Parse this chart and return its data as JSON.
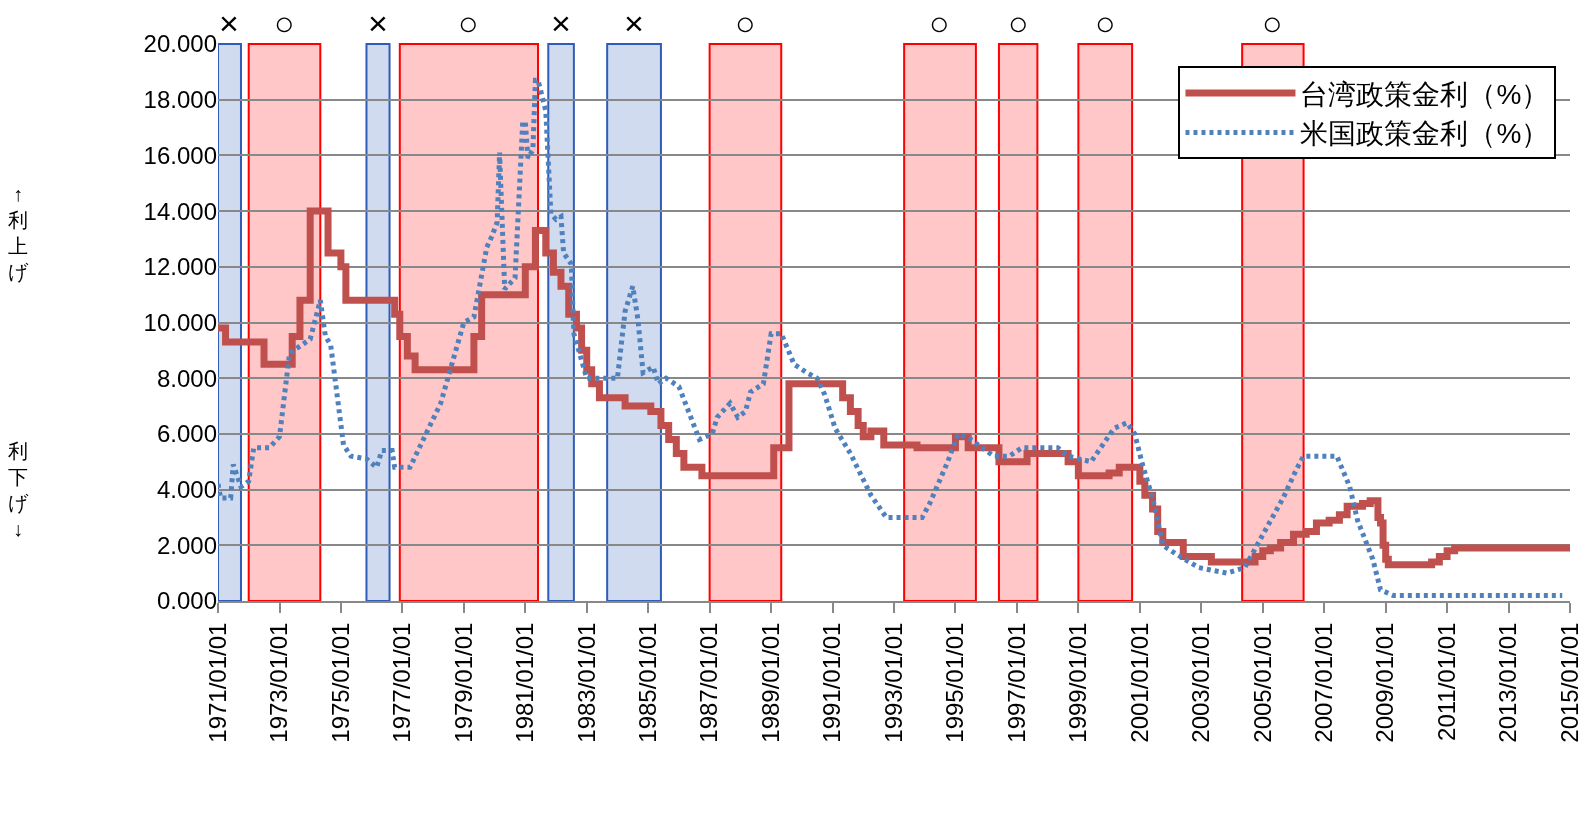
{
  "chart_data": {
    "type": "line",
    "annotations": [
      "↑利上げ",
      "利下げ↓"
    ],
    "series": [
      {
        "name": "台湾政策金利（%）",
        "type": "step",
        "color": "#c0504d",
        "line_style": "solid",
        "x": [
          "1971-01",
          "1971-04",
          "1972-07",
          "1973-06",
          "1973-09",
          "1974-01",
          "1974-08",
          "1975-01",
          "1975-03",
          "1976-10",
          "1976-12",
          "1977-03",
          "1977-06",
          "1979-05",
          "1979-08",
          "1981-01",
          "1981-05",
          "1981-09",
          "1981-12",
          "1982-03",
          "1982-06",
          "1982-09",
          "1982-11",
          "1983-01",
          "1983-03",
          "1983-06",
          "1984-04",
          "1985-02",
          "1985-06",
          "1985-09",
          "1985-12",
          "1986-03",
          "1986-10",
          "1989-02",
          "1989-08",
          "1991-05",
          "1991-08",
          "1991-11",
          "1992-01",
          "1992-04",
          "1992-09",
          "1993-10",
          "1995-01",
          "1995-06",
          "1996-06",
          "1997-05",
          "1998-09",
          "1999-01",
          "2000-01",
          "2000-05",
          "2001-01",
          "2001-03",
          "2001-06",
          "2001-08",
          "2001-10",
          "2002-06",
          "2003-05",
          "2004-10",
          "2005-01",
          "2005-04",
          "2005-08",
          "2006-01",
          "2006-06",
          "2006-10",
          "2007-03",
          "2007-07",
          "2007-10",
          "2008-04",
          "2008-07",
          "2008-10",
          "2008-11",
          "2008-12",
          "2009-01",
          "2009-02",
          "2010-07",
          "2010-10",
          "2011-01",
          "2011-04",
          "2015-01"
        ],
        "values": [
          9.8,
          9.3,
          8.5,
          9.5,
          10.8,
          14,
          12.5,
          12,
          10.8,
          10.3,
          9.5,
          8.8,
          8.3,
          9.5,
          11,
          12,
          13.3,
          12.5,
          11.8,
          11.3,
          10.3,
          9.8,
          9,
          8.3,
          7.8,
          7.3,
          7,
          6.8,
          6.3,
          5.8,
          5.3,
          4.8,
          4.5,
          5.5,
          7.8,
          7.3,
          6.8,
          6.3,
          5.9,
          6.1,
          5.6,
          5.5,
          5.9,
          5.5,
          5,
          5.3,
          5,
          4.5,
          4.6,
          4.8,
          4.3,
          3.8,
          3.3,
          2.5,
          2.1,
          1.6,
          1.4,
          1.6,
          1.8,
          1.9,
          2.1,
          2.4,
          2.5,
          2.8,
          2.9,
          3.1,
          3.4,
          3.5,
          3.6,
          3,
          2.8,
          2,
          1.5,
          1.3,
          1.4,
          1.6,
          1.8,
          1.9,
          1.9
        ]
      },
      {
        "name": "米国政策金利（%）",
        "color": "#4f81bd",
        "line_style": "dotted",
        "x": [
          "1971-01",
          "1971-02",
          "1971-06",
          "1971-07",
          "1971-10",
          "1972-01",
          "1972-03",
          "1972-09",
          "1973-01",
          "1973-05",
          "1974-01",
          "1974-05",
          "1974-07",
          "1974-09",
          "1975-02",
          "1975-05",
          "1975-11",
          "1976-03",
          "1976-05",
          "1976-09",
          "1976-10",
          "1977-04",
          "1978-04",
          "1979-01",
          "1979-05",
          "1979-10",
          "1979-12",
          "1980-02",
          "1980-03",
          "1980-05",
          "1980-09",
          "1980-12",
          "1981-01",
          "1981-02",
          "1981-04",
          "1981-05",
          "1981-06",
          "1981-09",
          "1981-11",
          "1982-01",
          "1982-03",
          "1982-04",
          "1982-07",
          "1982-08",
          "1983-01",
          "1984-01",
          "1984-04",
          "1984-07",
          "1984-09",
          "1984-11",
          "1985-03",
          "1985-05",
          "1985-08",
          "1986-01",
          "1986-09",
          "1987-02",
          "1987-04",
          "1987-09",
          "1987-12",
          "1988-03",
          "1988-05",
          "1988-10",
          "1989-01",
          "1989-05",
          "1989-10",
          "1990-03",
          "1990-07",
          "1990-10",
          "1991-02",
          "1991-08",
          "1992-04",
          "1992-10",
          "1993-12",
          "1994-03",
          "1994-10",
          "1995-02",
          "1995-07",
          "1996-04",
          "1996-10",
          "1997-03",
          "1998-05",
          "1998-09",
          "1999-06",
          "2000-03",
          "2000-08",
          "2000-11",
          "2001-02",
          "2001-06",
          "2001-10",
          "2002-03",
          "2002-12",
          "2003-11",
          "2004-06",
          "2005-03",
          "2005-09",
          "2006-02",
          "2006-05",
          "2007-06",
          "2007-11",
          "2008-02",
          "2008-08",
          "2008-11",
          "2009-04",
          "2014-10"
        ],
        "values": [
          4.2,
          3.7,
          3.7,
          4.9,
          4.1,
          4.3,
          5.5,
          5.5,
          5.9,
          8.9,
          9.4,
          10.8,
          9.5,
          9.2,
          5.6,
          5.2,
          5.1,
          4.8,
          5.4,
          5.4,
          4.8,
          4.8,
          7.1,
          10,
          10.2,
          12.7,
          13.1,
          13.6,
          16.1,
          11.2,
          11.6,
          17.2,
          17.2,
          15.9,
          16.2,
          18.7,
          18.7,
          17.6,
          13.9,
          13.7,
          13.8,
          12.5,
          12.1,
          9.6,
          8,
          8,
          10.4,
          11.3,
          10.1,
          8.2,
          8.4,
          7.8,
          8,
          7.7,
          5.8,
          6,
          6.6,
          7.1,
          6.6,
          6.8,
          7.5,
          7.8,
          9.6,
          9.6,
          8.5,
          8.2,
          8,
          7.4,
          6.2,
          5.3,
          3.8,
          3,
          3,
          3.5,
          5,
          6,
          5.8,
          5.2,
          5.2,
          5.5,
          5.5,
          5.2,
          5,
          6.2,
          6.4,
          6,
          4.9,
          3.7,
          2,
          1.7,
          1.2,
          1,
          1.2,
          2.7,
          3.7,
          4.7,
          5.2,
          5.2,
          4.1,
          2.9,
          1.5,
          0.4,
          0.2,
          0.2
        ]
      }
    ],
    "xlim": [
      "1971-01-01",
      "2015-01-01"
    ],
    "xticks": [
      {
        "value": "1971-01-01",
        "label": "1971/01/01"
      },
      {
        "value": "1973-01-01",
        "label": "1973/01/01"
      },
      {
        "value": "1975-01-01",
        "label": "1975/01/01"
      },
      {
        "value": "1977-01-01",
        "label": "1977/01/01"
      },
      {
        "value": "1979-01-01",
        "label": "1979/01/01"
      },
      {
        "value": "1981-01-01",
        "label": "1981/01/01"
      },
      {
        "value": "1983-01-01",
        "label": "1983/01/01"
      },
      {
        "value": "1985-01-01",
        "label": "1985/01/01"
      },
      {
        "value": "1987-01-01",
        "label": "1987/01/01"
      },
      {
        "value": "1989-01-01",
        "label": "1989/01/01"
      },
      {
        "value": "1991-01-01",
        "label": "1991/01/01"
      },
      {
        "value": "1993-01-01",
        "label": "1993/01/01"
      },
      {
        "value": "1995-01-01",
        "label": "1995/01/01"
      },
      {
        "value": "1997-01-01",
        "label": "1997/01/01"
      },
      {
        "value": "1999-01-01",
        "label": "1999/01/01"
      },
      {
        "value": "2001-01-01",
        "label": "2001/01/01"
      },
      {
        "value": "2003-01-01",
        "label": "2003/01/01"
      },
      {
        "value": "2005-01-01",
        "label": "2005/01/01"
      },
      {
        "value": "2007-01-01",
        "label": "2007/01/01"
      },
      {
        "value": "2009-01-01",
        "label": "2009/01/01"
      },
      {
        "value": "2011-01-01",
        "label": "2011/01/01"
      },
      {
        "value": "2013-01-01",
        "label": "2013/01/01"
      },
      {
        "value": "2015-01-01",
        "label": "2015/01/01"
      }
    ],
    "ylim": [
      0,
      20
    ],
    "yticks": [
      {
        "value": 0,
        "label": "0.000"
      },
      {
        "value": 2,
        "label": "2.000"
      },
      {
        "value": 4,
        "label": "4.000"
      },
      {
        "value": 6,
        "label": "6.000"
      },
      {
        "value": 8,
        "label": "8.000"
      },
      {
        "value": 10,
        "label": "10.000"
      },
      {
        "value": 12,
        "label": "12.000"
      },
      {
        "value": 14,
        "label": "14.000"
      },
      {
        "value": 16,
        "label": "16.000"
      },
      {
        "value": 18,
        "label": "18.000"
      },
      {
        "value": 20,
        "label": "20.000"
      }
    ],
    "bands": [
      {
        "axis": "x",
        "from": "1971-01",
        "to": "1971-10",
        "label": "×",
        "color": "#2e5cb8"
      },
      {
        "axis": "x",
        "from": "1972-01",
        "to": "1974-05",
        "label": "○",
        "color": "#ff0000"
      },
      {
        "axis": "x",
        "from": "1975-11",
        "to": "1976-08",
        "label": "×",
        "color": "#2e5cb8"
      },
      {
        "axis": "x",
        "from": "1976-12",
        "to": "1981-06",
        "label": "○",
        "color": "#ff0000"
      },
      {
        "axis": "x",
        "from": "1981-10",
        "to": "1982-08",
        "label": "×",
        "color": "#2e5cb8"
      },
      {
        "axis": "x",
        "from": "1983-09",
        "to": "1985-06",
        "label": "×",
        "color": "#2e5cb8"
      },
      {
        "axis": "x",
        "from": "1987-01",
        "to": "1989-05",
        "label": "○",
        "color": "#ff0000"
      },
      {
        "axis": "x",
        "from": "1993-05",
        "to": "1995-09",
        "label": "○",
        "color": "#ff0000"
      },
      {
        "axis": "x",
        "from": "1996-06",
        "to": "1997-09",
        "label": "○",
        "color": "#ff0000"
      },
      {
        "axis": "x",
        "from": "1999-01",
        "to": "2000-10",
        "label": "○",
        "color": "#ff0000"
      },
      {
        "axis": "x",
        "from": "2004-05",
        "to": "2006-05",
        "label": "○",
        "color": "#ff0000"
      }
    ],
    "grid": "y",
    "legend": "top right",
    "marker": "none"
  }
}
